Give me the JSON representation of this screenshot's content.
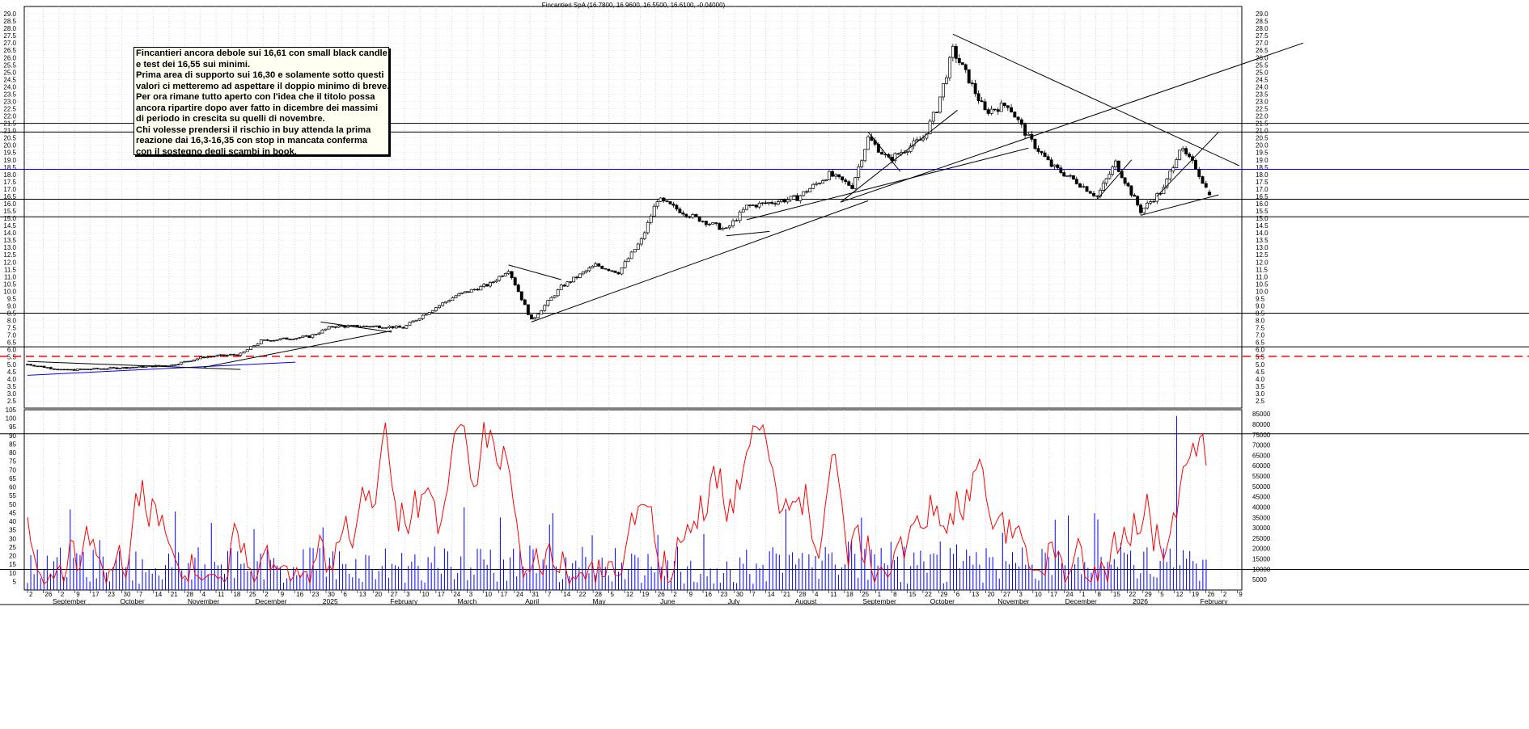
{
  "title": "Fincantieri SpA (16.7800, 16.9600, 16.5500, 16.6100, -0.04000)",
  "note": {
    "lines": [
      "Fincantieri ancora debole sui 16,61 con small black candle",
      "e test dei 16,55 sui minimi.",
      "Prima area di supporto sui 16,30 e solamente sotto questi",
      "valori ci metteremo ad aspettare il doppio minimo di breve.",
      "Per ora rimane tutto aperto con l'idea che il titolo possa",
      "ancora ripartire dopo aver fatto in dicembre dei massimi",
      "di periodo in crescita su quelli di novembre.",
      "Chi volesse prendersi il rischio in buy attenda la prima",
      "reazione dai 16,3-16,35 con stop in mancata conferma",
      "con il sostegno degli scambi in book."
    ]
  },
  "chart_data": [
    {
      "type": "candlestick",
      "title": "Fincantieri SpA (16.7800, 16.9600, 16.5500, 16.6100, -0.04000)",
      "last_bar": {
        "open": 16.78,
        "high": 16.96,
        "low": 16.55,
        "close": 16.61,
        "change": -0.04
      },
      "ylim": [
        2.0,
        29.5
      ],
      "y_ticks": [
        "2.5",
        "3.0",
        "3.5",
        "4.0",
        "4.5",
        "5.0",
        "5.5",
        "6.0",
        "6.5",
        "7.0",
        "7.5",
        "8.0",
        "8.5",
        "9.0",
        "9.5",
        "10.0",
        "10.5",
        "11.0",
        "11.5",
        "12.0",
        "12.5",
        "13.0",
        "13.5",
        "14.0",
        "14.5",
        "15.0",
        "15.5",
        "16.0",
        "16.5",
        "17.0",
        "17.5",
        "18.0",
        "18.5",
        "19.0",
        "19.5",
        "20.0",
        "20.5",
        "21.0",
        "21.5",
        "22.0",
        "22.5",
        "23.0",
        "23.5",
        "24.0",
        "24.5",
        "25.0",
        "25.5",
        "26.0",
        "26.5",
        "27.0",
        "27.5",
        "28.0",
        "28.5",
        "29.0"
      ],
      "approx_close_path": [
        {
          "date": "2024-08-30",
          "close": 5.0
        },
        {
          "date": "2024-09-15",
          "close": 4.6
        },
        {
          "date": "2024-10-01",
          "close": 4.7
        },
        {
          "date": "2024-10-15",
          "close": 4.8
        },
        {
          "date": "2024-11-01",
          "close": 4.95
        },
        {
          "date": "2024-11-15",
          "close": 5.5
        },
        {
          "date": "2024-12-01",
          "close": 5.7
        },
        {
          "date": "2024-12-10",
          "close": 6.6
        },
        {
          "date": "2024-12-31",
          "close": 6.9
        },
        {
          "date": "2025-01-10",
          "close": 7.6
        },
        {
          "date": "2025-02-01",
          "close": 7.6
        },
        {
          "date": "2025-02-10",
          "close": 7.5
        },
        {
          "date": "2025-02-20",
          "close": 8.5
        },
        {
          "date": "2025-03-05",
          "close": 9.7
        },
        {
          "date": "2025-03-20",
          "close": 10.5
        },
        {
          "date": "2025-03-28",
          "close": 11.5
        },
        {
          "date": "2025-04-07",
          "close": 8.0
        },
        {
          "date": "2025-04-20",
          "close": 10.3
        },
        {
          "date": "2025-05-05",
          "close": 11.8
        },
        {
          "date": "2025-05-15",
          "close": 11.3
        },
        {
          "date": "2025-05-25",
          "close": 13.5
        },
        {
          "date": "2025-06-01",
          "close": 16.3
        },
        {
          "date": "2025-06-15",
          "close": 15.2
        },
        {
          "date": "2025-07-01",
          "close": 14.2
        },
        {
          "date": "2025-07-10",
          "close": 15.8
        },
        {
          "date": "2025-08-01",
          "close": 16.4
        },
        {
          "date": "2025-08-15",
          "close": 18.0
        },
        {
          "date": "2025-08-25",
          "close": 17.2
        },
        {
          "date": "2025-09-01",
          "close": 20.5
        },
        {
          "date": "2025-09-10",
          "close": 19.0
        },
        {
          "date": "2025-09-25",
          "close": 20.5
        },
        {
          "date": "2025-10-01",
          "close": 22.5
        },
        {
          "date": "2025-10-08",
          "close": 26.5
        },
        {
          "date": "2025-10-15",
          "close": 24.5
        },
        {
          "date": "2025-10-22",
          "close": 22.3
        },
        {
          "date": "2025-11-01",
          "close": 22.8
        },
        {
          "date": "2025-11-10",
          "close": 20.5
        },
        {
          "date": "2025-11-20",
          "close": 18.6
        },
        {
          "date": "2025-12-01",
          "close": 17.5
        },
        {
          "date": "2025-12-10",
          "close": 16.5
        },
        {
          "date": "2025-12-18",
          "close": 18.8
        },
        {
          "date": "2025-12-29",
          "close": 15.5
        },
        {
          "date": "2026-01-08",
          "close": 17.0
        },
        {
          "date": "2026-01-15",
          "close": 19.8
        },
        {
          "date": "2026-01-22",
          "close": 18.5
        },
        {
          "date": "2026-01-28",
          "close": 16.61
        }
      ],
      "horizontal_levels": [
        {
          "value": 5.55,
          "color": "#ff0000",
          "style": "dashed"
        },
        {
          "value": 6.2,
          "color": "#000000"
        },
        {
          "value": 8.5,
          "color": "#000000"
        },
        {
          "value": 15.1,
          "color": "#000000"
        },
        {
          "value": 16.3,
          "color": "#000000"
        },
        {
          "value": 18.35,
          "color": "#0000ff"
        },
        {
          "value": 20.9,
          "color": "#000000"
        },
        {
          "value": 21.5,
          "color": "#000000"
        }
      ]
    },
    {
      "type": "line",
      "series_label": "oscillator",
      "ylim": [
        0,
        105
      ],
      "y_ticks": [
        "5",
        "10",
        "15",
        "20",
        "25",
        "30",
        "35",
        "40",
        "45",
        "50",
        "55",
        "60",
        "65",
        "70",
        "75",
        "80",
        "85",
        "90",
        "95",
        "100",
        "105"
      ],
      "reference_levels": [
        12,
        91
      ],
      "color": "#ff0000"
    },
    {
      "type": "bar",
      "series_label": "volume",
      "ylim": [
        0,
        87000
      ],
      "y_ticks": [
        "5000",
        "10000",
        "15000",
        "20000",
        "25000",
        "30000",
        "35000",
        "40000",
        "45000",
        "50000",
        "55000",
        "60000",
        "65000",
        "70000",
        "75000",
        "80000",
        "85000"
      ],
      "color": "#0000ff"
    }
  ],
  "x_axis": {
    "days": [
      "2",
      "26",
      "2",
      "9",
      "17",
      "23",
      "30",
      "7",
      "14",
      "21",
      "28",
      "4",
      "11",
      "18",
      "25",
      "2",
      "9",
      "16",
      "23",
      "30",
      "6",
      "13",
      "20",
      "27",
      "3",
      "10",
      "17",
      "24",
      "3",
      "10",
      "17",
      "24",
      "31",
      "7",
      "14",
      "22",
      "28",
      "5",
      "12",
      "19",
      "26",
      "2",
      "9",
      "16",
      "23",
      "30",
      "7",
      "14",
      "21",
      "28",
      "4",
      "11",
      "18",
      "25",
      "1",
      "8",
      "15",
      "22",
      "29",
      "6",
      "13",
      "20",
      "27",
      "3",
      "10",
      "17",
      "24",
      "1",
      "8",
      "15",
      "22",
      "29",
      "5",
      "12",
      "19",
      "26",
      "2",
      "9"
    ],
    "months": [
      "September",
      "October",
      "November",
      "December",
      "2025",
      "February",
      "March",
      "April",
      "May",
      "June",
      "July",
      "August",
      "September",
      "October",
      "November",
      "December",
      "2026",
      "February"
    ]
  }
}
